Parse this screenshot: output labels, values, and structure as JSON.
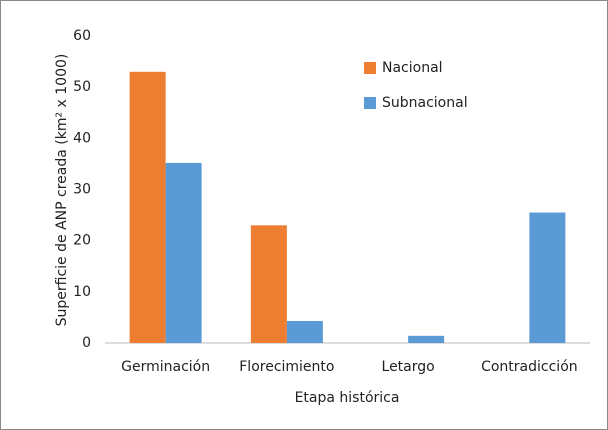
{
  "chart_data": {
    "type": "bar",
    "categories": [
      "Germinación",
      "Florecimiento",
      "Letargo",
      "Contradicción"
    ],
    "series": [
      {
        "name": "Nacional",
        "color": "#ed7d31",
        "values": [
          53,
          23,
          0,
          0
        ]
      },
      {
        "name": "Subnacional",
        "color": "#5b9bd5",
        "values": [
          35.2,
          4.3,
          1.4,
          25.5
        ]
      }
    ],
    "ylabel": "Superficie de ANP creada (km² x 1000)",
    "xlabel": "Etapa histórica",
    "ylim": [
      0,
      60
    ],
    "yticks": [
      0,
      10,
      20,
      30,
      40,
      50,
      60
    ],
    "grid": false,
    "legend": "top-right"
  }
}
